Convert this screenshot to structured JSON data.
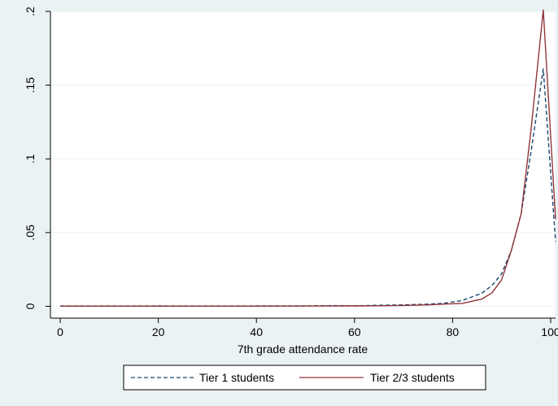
{
  "chart_data": {
    "type": "line",
    "title": "",
    "xlabel": "7th grade attendance rate",
    "ylabel": "",
    "xlim": [
      -2,
      101
    ],
    "ylim": [
      -0.008,
      0.2
    ],
    "x_ticks": [
      0,
      20,
      40,
      60,
      80,
      100
    ],
    "x_tick_labels": [
      "0",
      "20",
      "40",
      "60",
      "80",
      "100"
    ],
    "y_ticks": [
      0,
      0.05,
      0.1,
      0.15,
      0.2
    ],
    "y_tick_labels": [
      "0",
      ".05",
      ".1",
      ".15",
      ".2"
    ],
    "grid": true,
    "legend_position": "bottom",
    "x": [
      0,
      10,
      20,
      30,
      40,
      50,
      55,
      60,
      65,
      70,
      75,
      78,
      82,
      86,
      88,
      90,
      92,
      94,
      96,
      98.5,
      101
    ],
    "series": [
      {
        "name": "Tier 1 students",
        "color": "#1a476f",
        "dash": "dashed",
        "values": [
          0.0002,
          0.0002,
          0.0003,
          0.0002,
          0.0003,
          0.0003,
          0.0005,
          0.0004,
          0.0007,
          0.001,
          0.0015,
          0.002,
          0.004,
          0.009,
          0.014,
          0.022,
          0.038,
          0.063,
          0.105,
          0.161,
          0.044
        ]
      },
      {
        "name": "Tier 2/3 students",
        "color": "#90353b",
        "dash": "solid",
        "values": [
          0.0001,
          0.0001,
          0.0001,
          0.0001,
          0.0001,
          0.0002,
          0.0002,
          0.0003,
          0.0004,
          0.0006,
          0.001,
          0.0015,
          0.002,
          0.005,
          0.009,
          0.018,
          0.038,
          0.063,
          0.12,
          0.201,
          0.059
        ]
      }
    ]
  }
}
